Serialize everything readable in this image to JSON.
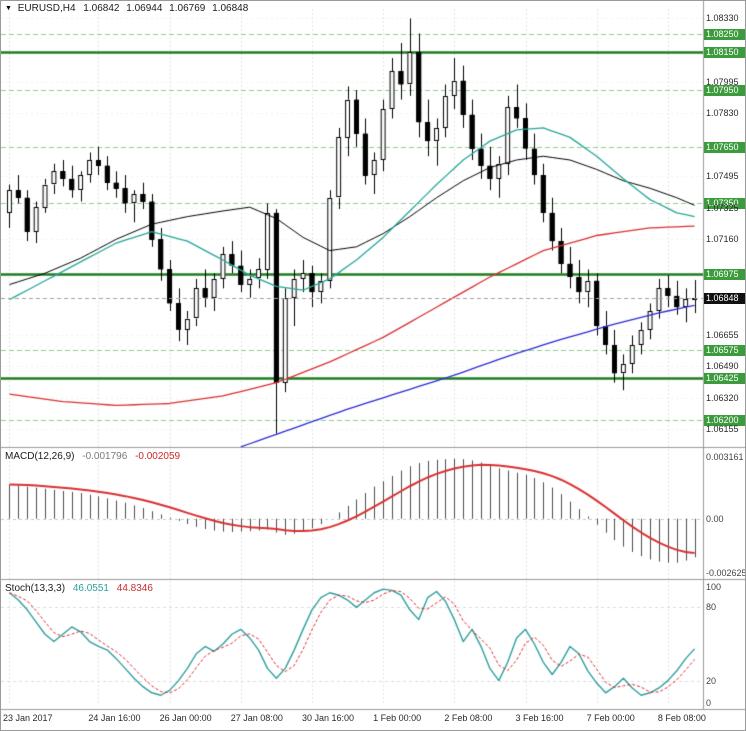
{
  "header": {
    "symbol_period": "EURUSD,H4",
    "open": "1.06842",
    "high": "1.06944",
    "low": "1.06769",
    "close": "1.06848"
  },
  "macd_panel": {
    "label": "MACD(12,26,9)",
    "value_main": "-0.001796",
    "value_signal": "-0.002059",
    "axis_labels": [
      {
        "value": 0.003161,
        "text": "0.003161"
      },
      {
        "value": 0.0,
        "text": "0.00"
      },
      {
        "value": -0.002625,
        "text": "-0.002625"
      }
    ]
  },
  "stoch_panel": {
    "label": "Stoch(13,3,3)",
    "value_k": "46.0551",
    "value_d": "44.8346",
    "axis_labels": [
      {
        "value": 100,
        "text": "100"
      },
      {
        "value": 80,
        "text": "80"
      },
      {
        "value": 20,
        "text": "20"
      },
      {
        "value": 0,
        "text": "0"
      }
    ]
  },
  "colors": {
    "level_solid": "#1e7d1e",
    "level_dashed": "#8fce8f",
    "label_bg": "#3c9b3c",
    "bull_body": "#ffffff",
    "bear_body": "#000000",
    "wick": "#000000",
    "ma_black": "#000000",
    "ma_teal": "#26a69a",
    "ma_red": "#d93030",
    "ma_blue": "#2b2bd4",
    "macd_hist": "#4d4d4d",
    "macd_signal": "#d93030",
    "stoch_k": "#2f9e9e",
    "stoch_d": "#d93030",
    "grid": "#e4e4e4",
    "current_line": "#a0a0a0"
  },
  "chart_data": {
    "type": "candlestick",
    "symbol": "EURUSD",
    "timeframe": "H4",
    "title": "EURUSD,H4 1.06842 1.06944 1.06769 1.06848",
    "price_axis": {
      "min": 1.0607,
      "max": 1.0838,
      "labels": [
        {
          "price": 1.0833,
          "text": "1.08330",
          "style": "tick"
        },
        {
          "price": 1.0825,
          "text": "1.08250",
          "style": "level_dashed"
        },
        {
          "price": 1.0815,
          "text": "1.08150",
          "style": "level_solid"
        },
        {
          "price": 1.07995,
          "text": "1.07995",
          "style": "tick"
        },
        {
          "price": 1.0795,
          "text": "1.07950",
          "style": "level_dashed"
        },
        {
          "price": 1.0783,
          "text": "1.07830",
          "style": "tick"
        },
        {
          "price": 1.0765,
          "text": "1.07650",
          "style": "level_dashed"
        },
        {
          "price": 1.07495,
          "text": "1.07495",
          "style": "tick"
        },
        {
          "price": 1.0735,
          "text": "1.07350",
          "style": "level_dashed"
        },
        {
          "price": 1.07325,
          "text": "1.07325",
          "style": "tick"
        },
        {
          "price": 1.0716,
          "text": "1.07160",
          "style": "tick"
        },
        {
          "price": 1.06975,
          "text": "1.06975",
          "style": "level_solid"
        },
        {
          "price": 1.06848,
          "text": "1.06848",
          "style": "current"
        },
        {
          "price": 1.06655,
          "text": "1.06655",
          "style": "tick"
        },
        {
          "price": 1.06575,
          "text": "1.06575",
          "style": "level_dashed"
        },
        {
          "price": 1.0649,
          "text": "1.06490",
          "style": "tick"
        },
        {
          "price": 1.06425,
          "text": "1.06425",
          "style": "level_solid"
        },
        {
          "price": 1.0632,
          "text": "1.06320",
          "style": "tick"
        },
        {
          "price": 1.062,
          "text": "1.06200",
          "style": "level_dashed"
        },
        {
          "price": 1.06155,
          "text": "1.06155",
          "style": "tick"
        }
      ]
    },
    "time_axis": {
      "labels": [
        {
          "index": 0,
          "text": "23 Jan 2017"
        },
        {
          "index": 10,
          "text": "24 Jan 16:00"
        },
        {
          "index": 18,
          "text": "26 Jan 00:00"
        },
        {
          "index": 26,
          "text": "27 Jan 08:00"
        },
        {
          "index": 34,
          "text": "30 Jan 16:00"
        },
        {
          "index": 42,
          "text": "1 Feb 00:00"
        },
        {
          "index": 50,
          "text": "2 Feb 08:00"
        },
        {
          "index": 58,
          "text": "3 Feb 16:00"
        },
        {
          "index": 66,
          "text": "7 Feb 00:00"
        },
        {
          "index": 74,
          "text": "8 Feb 08:00"
        }
      ]
    },
    "current_price": 1.06848,
    "candles": [
      [
        1.073,
        1.0745,
        1.0722,
        1.0742
      ],
      [
        1.0742,
        1.075,
        1.0735,
        1.0738
      ],
      [
        1.0738,
        1.0742,
        1.0715,
        1.072
      ],
      [
        1.072,
        1.0736,
        1.0714,
        1.0733
      ],
      [
        1.0733,
        1.0748,
        1.073,
        1.0745
      ],
      [
        1.0745,
        1.0756,
        1.074,
        1.0752
      ],
      [
        1.0752,
        1.0758,
        1.0744,
        1.0748
      ],
      [
        1.0748,
        1.0755,
        1.0738,
        1.0742
      ],
      [
        1.0742,
        1.0752,
        1.0736,
        1.075
      ],
      [
        1.075,
        1.0762,
        1.0746,
        1.0758
      ],
      [
        1.0758,
        1.0765,
        1.075,
        1.0755
      ],
      [
        1.0755,
        1.076,
        1.0742,
        1.0746
      ],
      [
        1.0746,
        1.0752,
        1.0738,
        1.0743
      ],
      [
        1.0743,
        1.075,
        1.073,
        1.0735
      ],
      [
        1.0735,
        1.0742,
        1.0725,
        1.074
      ],
      [
        1.074,
        1.0746,
        1.0732,
        1.0736
      ],
      [
        1.0736,
        1.074,
        1.0712,
        1.0716
      ],
      [
        1.0716,
        1.0722,
        1.0694,
        1.07
      ],
      [
        1.07,
        1.0705,
        1.0678,
        1.0682
      ],
      [
        1.0682,
        1.069,
        1.0662,
        1.0668
      ],
      [
        1.0668,
        1.0678,
        1.066,
        1.0674
      ],
      [
        1.0674,
        1.0695,
        1.067,
        1.069
      ],
      [
        1.069,
        1.07,
        1.068,
        1.0685
      ],
      [
        1.0685,
        1.0698,
        1.0678,
        1.0695
      ],
      [
        1.0695,
        1.0712,
        1.069,
        1.0708
      ],
      [
        1.0708,
        1.0715,
        1.0698,
        1.0702
      ],
      [
        1.0702,
        1.071,
        1.0688,
        1.0692
      ],
      [
        1.0692,
        1.07,
        1.0685,
        1.0695
      ],
      [
        1.0695,
        1.0706,
        1.069,
        1.07
      ],
      [
        1.07,
        1.0735,
        1.0695,
        1.073
      ],
      [
        1.073,
        1.0732,
        1.0613,
        1.064
      ],
      [
        1.064,
        1.069,
        1.0635,
        1.0685
      ],
      [
        1.0685,
        1.07,
        1.067,
        1.0695
      ],
      [
        1.0695,
        1.0705,
        1.0688,
        1.0698
      ],
      [
        1.0698,
        1.0702,
        1.068,
        1.0688
      ],
      [
        1.0688,
        1.0698,
        1.0682,
        1.0694
      ],
      [
        1.0694,
        1.0742,
        1.069,
        1.0738
      ],
      [
        1.0738,
        1.0775,
        1.0732,
        1.077
      ],
      [
        1.077,
        1.0797,
        1.076,
        1.079
      ],
      [
        1.079,
        1.0795,
        1.0765,
        1.0772
      ],
      [
        1.0772,
        1.078,
        1.0745,
        1.075
      ],
      [
        1.075,
        1.0762,
        1.074,
        1.0758
      ],
      [
        1.0758,
        1.079,
        1.0752,
        1.0785
      ],
      [
        1.0785,
        1.0812,
        1.078,
        1.0805
      ],
      [
        1.0805,
        1.082,
        1.079,
        1.0798
      ],
      [
        1.0798,
        1.0833,
        1.0792,
        1.0815
      ],
      [
        1.0815,
        1.0825,
        1.077,
        1.0778
      ],
      [
        1.0778,
        1.079,
        1.076,
        1.0768
      ],
      [
        1.0768,
        1.078,
        1.0755,
        1.0775
      ],
      [
        1.0775,
        1.0798,
        1.077,
        1.0792
      ],
      [
        1.0792,
        1.0812,
        1.0785,
        1.08
      ],
      [
        1.08,
        1.0808,
        1.0775,
        1.0782
      ],
      [
        1.0782,
        1.079,
        1.0758,
        1.0764
      ],
      [
        1.0764,
        1.0772,
        1.0748,
        1.0755
      ],
      [
        1.0755,
        1.0765,
        1.0742,
        1.0748
      ],
      [
        1.0748,
        1.076,
        1.0738,
        1.0756
      ],
      [
        1.0756,
        1.0792,
        1.075,
        1.0786
      ],
      [
        1.0786,
        1.0798,
        1.0775,
        1.078
      ],
      [
        1.078,
        1.0788,
        1.0758,
        1.0764
      ],
      [
        1.0764,
        1.0772,
        1.0745,
        1.075
      ],
      [
        1.075,
        1.0756,
        1.0725,
        1.073
      ],
      [
        1.073,
        1.0738,
        1.071,
        1.0715
      ],
      [
        1.0715,
        1.0722,
        1.0698,
        1.0703
      ],
      [
        1.0703,
        1.0712,
        1.069,
        1.0696
      ],
      [
        1.0696,
        1.0705,
        1.0682,
        1.0688
      ],
      [
        1.0688,
        1.07,
        1.068,
        1.0694
      ],
      [
        1.0694,
        1.0698,
        1.0665,
        1.067
      ],
      [
        1.067,
        1.0678,
        1.0655,
        1.066
      ],
      [
        1.066,
        1.0668,
        1.064,
        1.0645
      ],
      [
        1.0645,
        1.0655,
        1.0636,
        1.065
      ],
      [
        1.065,
        1.0665,
        1.0645,
        1.066
      ],
      [
        1.066,
        1.0672,
        1.0655,
        1.0668
      ],
      [
        1.0668,
        1.0682,
        1.0663,
        1.0678
      ],
      [
        1.0678,
        1.0695,
        1.0674,
        1.069
      ],
      [
        1.069,
        1.0697,
        1.068,
        1.0686
      ],
      [
        1.0686,
        1.0694,
        1.0676,
        1.068
      ],
      [
        1.068,
        1.069,
        1.0672,
        1.06842
      ],
      [
        1.06842,
        1.06944,
        1.06769,
        1.06848
      ]
    ],
    "ma_lines": [
      {
        "name": "ma-black",
        "color": "#000000",
        "width": 1,
        "points": [
          [
            0,
            1.0692
          ],
          [
            4,
            1.0698
          ],
          [
            8,
            1.0706
          ],
          [
            12,
            1.0716
          ],
          [
            16,
            1.0724
          ],
          [
            20,
            1.0728
          ],
          [
            24,
            1.0731
          ],
          [
            27,
            1.0733
          ],
          [
            30,
            1.0727
          ],
          [
            33,
            1.0717
          ],
          [
            36,
            1.071
          ],
          [
            39,
            1.0712
          ],
          [
            42,
            1.0719
          ],
          [
            45,
            1.0728
          ],
          [
            48,
            1.0738
          ],
          [
            51,
            1.0747
          ],
          [
            54,
            1.0754
          ],
          [
            57,
            1.0758
          ],
          [
            60,
            1.076
          ],
          [
            63,
            1.0758
          ],
          [
            66,
            1.0753
          ],
          [
            69,
            1.0747
          ],
          [
            72,
            1.0743
          ],
          [
            75,
            1.0738
          ],
          [
            77,
            1.0734
          ]
        ]
      },
      {
        "name": "ma-teal",
        "color": "#26a69a",
        "width": 1.3,
        "points": [
          [
            0,
            1.0684
          ],
          [
            4,
            1.0694
          ],
          [
            8,
            1.0704
          ],
          [
            12,
            1.0714
          ],
          [
            16,
            1.072
          ],
          [
            20,
            1.0715
          ],
          [
            24,
            1.0705
          ],
          [
            27,
            1.0697
          ],
          [
            30,
            1.0691
          ],
          [
            33,
            1.0689
          ],
          [
            36,
            1.0695
          ],
          [
            39,
            1.0705
          ],
          [
            42,
            1.0717
          ],
          [
            45,
            1.0731
          ],
          [
            48,
            1.0745
          ],
          [
            51,
            1.0758
          ],
          [
            54,
            1.0768
          ],
          [
            57,
            1.0774
          ],
          [
            60,
            1.0775
          ],
          [
            63,
            1.077
          ],
          [
            66,
            1.076
          ],
          [
            69,
            1.0748
          ],
          [
            72,
            1.0737
          ],
          [
            75,
            1.073
          ],
          [
            77,
            1.0728
          ]
        ]
      },
      {
        "name": "ma-red",
        "color": "#d93030",
        "width": 1.3,
        "points": [
          [
            0,
            1.0634
          ],
          [
            6,
            1.063
          ],
          [
            12,
            1.0628
          ],
          [
            18,
            1.0629
          ],
          [
            24,
            1.0633
          ],
          [
            30,
            1.064
          ],
          [
            36,
            1.0651
          ],
          [
            42,
            1.0664
          ],
          [
            48,
            1.068
          ],
          [
            54,
            1.0696
          ],
          [
            60,
            1.071
          ],
          [
            66,
            1.0718
          ],
          [
            72,
            1.0722
          ],
          [
            77,
            1.0723
          ]
        ]
      },
      {
        "name": "ma-blue",
        "color": "#2b2bd4",
        "width": 1.3,
        "points": [
          [
            26,
            1.0606
          ],
          [
            32,
            1.0616
          ],
          [
            38,
            1.0626
          ],
          [
            44,
            1.0635
          ],
          [
            50,
            1.0644
          ],
          [
            56,
            1.0654
          ],
          [
            62,
            1.0663
          ],
          [
            68,
            1.0671
          ],
          [
            73,
            1.0677
          ],
          [
            77,
            1.0681
          ]
        ]
      }
    ],
    "macd": {
      "params": "12,26,9",
      "range": [
        -0.002625,
        0.003161
      ],
      "signal_period": 9,
      "histogram": [
        0.0016,
        0.00155,
        0.0015,
        0.00145,
        0.0014,
        0.00135,
        0.0013,
        0.00125,
        0.0012,
        0.00112,
        0.00105,
        0.00095,
        0.00085,
        0.00075,
        0.00062,
        0.0005,
        0.00035,
        0.0002,
        5e-05,
        -0.0001,
        -0.00025,
        -0.00038,
        -0.00048,
        -0.00055,
        -0.0006,
        -0.00062,
        -0.0006,
        -0.00058,
        -0.00055,
        -0.0005,
        -0.00065,
        -0.00075,
        -0.0007,
        -0.0006,
        -0.00045,
        -0.00025,
        0.0,
        0.0003,
        0.0006,
        0.0009,
        0.0012,
        0.0015,
        0.00175,
        0.002,
        0.00225,
        0.00245,
        0.0026,
        0.0027,
        0.00275,
        0.00278,
        0.0028,
        0.00278,
        0.00272,
        0.00262,
        0.0025,
        0.00235,
        0.00225,
        0.00215,
        0.00205,
        0.0019,
        0.0017,
        0.00145,
        0.00115,
        0.0008,
        0.00045,
        0.0001,
        -0.00028,
        -0.00065,
        -0.001,
        -0.0013,
        -0.00155,
        -0.00175,
        -0.0019,
        -0.002,
        -0.00205,
        -0.00205,
        -0.00195,
        -0.0018
      ]
    },
    "stoch": {
      "params": "13,3,3",
      "range": [
        0,
        100
      ],
      "d_period": 3,
      "grid_levels": [
        80,
        20
      ],
      "k": [
        92,
        86,
        78,
        68,
        58,
        52,
        58,
        64,
        60,
        52,
        48,
        45,
        38,
        30,
        22,
        15,
        10,
        8,
        12,
        20,
        30,
        42,
        48,
        44,
        50,
        58,
        62,
        55,
        45,
        30,
        22,
        30,
        45,
        62,
        78,
        88,
        92,
        90,
        86,
        80,
        86,
        92,
        95,
        94,
        90,
        78,
        70,
        88,
        93,
        85,
        70,
        52,
        62,
        48,
        30,
        20,
        35,
        55,
        62,
        50,
        35,
        25,
        35,
        48,
        42,
        28,
        18,
        10,
        15,
        22,
        14,
        8,
        10,
        14,
        20,
        28,
        38,
        46
      ]
    }
  }
}
